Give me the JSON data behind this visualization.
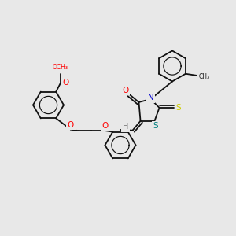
{
  "bg": "#e8e8e8",
  "bc": "#111111",
  "O_color": "#ff0000",
  "N_color": "#0000cc",
  "S_yellow": "#cccc00",
  "S_teal": "#008080",
  "H_color": "#777777",
  "lw": 1.3,
  "fs": 7.0,
  "xlim": [
    0,
    10
  ],
  "ylim": [
    0,
    10
  ]
}
